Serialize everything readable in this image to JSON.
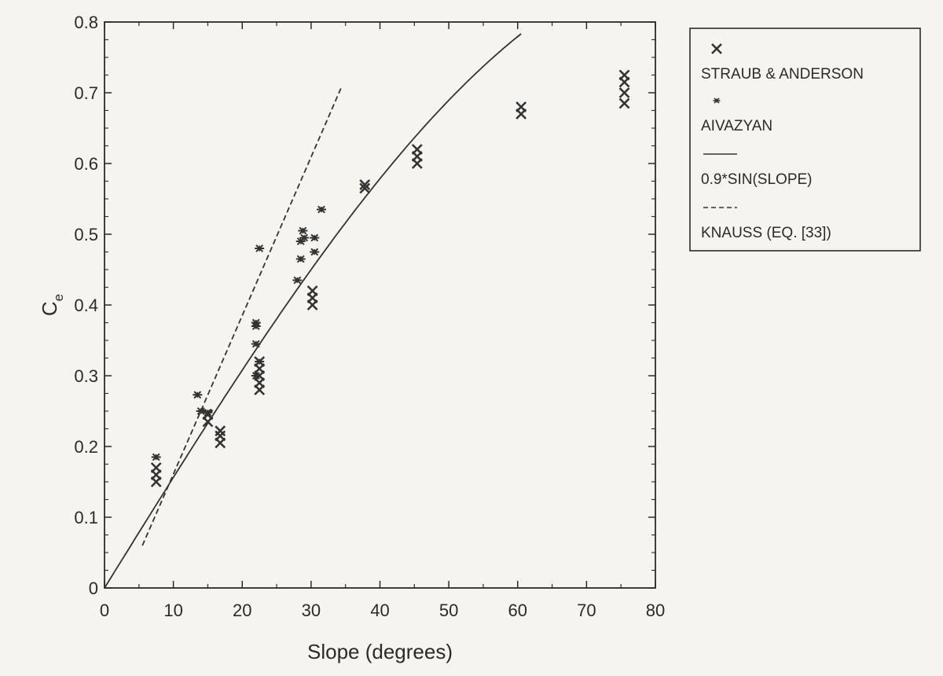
{
  "chart_data": {
    "type": "scatter",
    "title": "",
    "xlabel": "Slope  (degrees)",
    "ylabel": "C",
    "ylabel_subscript": "e",
    "xlim": [
      0,
      80
    ],
    "ylim": [
      0,
      0.8
    ],
    "x_ticks": [
      "0",
      "10",
      "20",
      "30",
      "40",
      "50",
      "60",
      "70",
      "80"
    ],
    "y_ticks": [
      "0",
      "0.1",
      "0.2",
      "0.3",
      "0.4",
      "0.5",
      "0.6",
      "0.7",
      "0.8"
    ],
    "grid": false,
    "legend_position": "outside-right-top",
    "series": [
      {
        "name": "STRAUB & ANDERSON",
        "kind": "scatter",
        "marker": "x",
        "color": "#333333",
        "points": [
          [
            7.5,
            0.15
          ],
          [
            7.5,
            0.16
          ],
          [
            7.5,
            0.17
          ],
          [
            15.0,
            0.235
          ],
          [
            15.0,
            0.245
          ],
          [
            16.8,
            0.205
          ],
          [
            16.8,
            0.215
          ],
          [
            16.8,
            0.222
          ],
          [
            22.5,
            0.28
          ],
          [
            22.5,
            0.29
          ],
          [
            22.5,
            0.3
          ],
          [
            22.5,
            0.31
          ],
          [
            22.5,
            0.32
          ],
          [
            30.2,
            0.4
          ],
          [
            30.2,
            0.41
          ],
          [
            30.2,
            0.42
          ],
          [
            37.8,
            0.565
          ],
          [
            37.8,
            0.57
          ],
          [
            45.4,
            0.6
          ],
          [
            45.4,
            0.61
          ],
          [
            45.4,
            0.62
          ],
          [
            60.5,
            0.67
          ],
          [
            60.5,
            0.68
          ],
          [
            75.5,
            0.685
          ],
          [
            75.5,
            0.7
          ],
          [
            75.5,
            0.715
          ],
          [
            75.5,
            0.725
          ]
        ]
      },
      {
        "name": "AIVAZYAN",
        "kind": "scatter",
        "marker": "asterisk",
        "color": "#333333",
        "points": [
          [
            7.5,
            0.185
          ],
          [
            13.5,
            0.273
          ],
          [
            14.0,
            0.25
          ],
          [
            15.0,
            0.248
          ],
          [
            22.0,
            0.375
          ],
          [
            22.0,
            0.37
          ],
          [
            22.5,
            0.48
          ],
          [
            22.0,
            0.345
          ],
          [
            22.5,
            0.32
          ],
          [
            22.0,
            0.3
          ],
          [
            28.0,
            0.435
          ],
          [
            28.5,
            0.465
          ],
          [
            28.5,
            0.49
          ],
          [
            28.8,
            0.505
          ],
          [
            29.0,
            0.495
          ],
          [
            30.5,
            0.495
          ],
          [
            30.5,
            0.475
          ],
          [
            31.5,
            0.535
          ]
        ]
      },
      {
        "name": "0.9*SIN(SLOPE)",
        "kind": "line",
        "style": "solid",
        "color": "#333333",
        "x_range": [
          0,
          60.5
        ],
        "formula": "0.9*sin(x)"
      },
      {
        "name": "KNAUSS (EQ. [33])",
        "kind": "line",
        "style": "dashed",
        "color": "#333333",
        "x": [
          5.5,
          34.5
        ],
        "y": [
          0.06,
          0.71
        ]
      }
    ]
  }
}
